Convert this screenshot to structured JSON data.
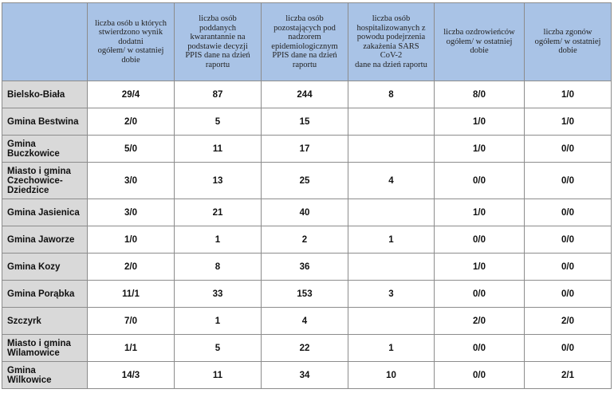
{
  "table": {
    "headers": [
      {
        "lines": [
          ""
        ]
      },
      {
        "lines": [
          "liczba osób u których",
          "stwierdzono wynik",
          "dodatni",
          "ogółem/ w ostatniej",
          "dobie"
        ]
      },
      {
        "lines": [
          "liczba osób",
          "poddanych",
          "kwarantannie na",
          "podstawie decyzji",
          "PPIS dane na dzień",
          "raportu"
        ]
      },
      {
        "lines": [
          "liczba osób",
          "pozostających pod",
          "nadzorem",
          "epidemiologicznym",
          "PPIS dane na dzień",
          "raportu"
        ]
      },
      {
        "lines": [
          "liczba osób",
          "hospitalizowanych z",
          "powodu podejrzenia",
          "zakażenia SARS",
          "CoV-2",
          "dane na dzień raportu"
        ]
      },
      {
        "lines": [
          "liczba ozdrowieńców",
          "ogółem/ w ostatniej",
          "dobie"
        ]
      },
      {
        "lines": [
          "liczba zgonów",
          "ogółem/ w ostatniej",
          "dobie"
        ]
      }
    ],
    "rows": [
      {
        "name": [
          "Bielsko-Biała"
        ],
        "cells": [
          "29/4",
          "87",
          "244",
          "8",
          "8/0",
          "1/0"
        ]
      },
      {
        "name": [
          "Gmina Bestwina"
        ],
        "cells": [
          "2/0",
          "5",
          "15",
          "",
          "1/0",
          "1/0"
        ]
      },
      {
        "name": [
          "Gmina",
          "Buczkowice"
        ],
        "cells": [
          "5/0",
          "11",
          "17",
          "",
          "1/0",
          "0/0"
        ]
      },
      {
        "name": [
          "Miasto i gmina",
          "Czechowice-",
          "Dziedzice"
        ],
        "cells": [
          "3/0",
          "13",
          "25",
          "4",
          "0/0",
          "0/0"
        ]
      },
      {
        "name": [
          "Gmina Jasienica"
        ],
        "cells": [
          "3/0",
          "21",
          "40",
          "",
          "1/0",
          "0/0"
        ]
      },
      {
        "name": [
          "Gmina Jaworze"
        ],
        "cells": [
          "1/0",
          "1",
          "2",
          "1",
          "0/0",
          "0/0"
        ]
      },
      {
        "name": [
          "Gmina Kozy"
        ],
        "cells": [
          "2/0",
          "8",
          "36",
          "",
          "1/0",
          "0/0"
        ]
      },
      {
        "name": [
          "Gmina Porąbka"
        ],
        "cells": [
          "11/1",
          "33",
          "153",
          "3",
          "0/0",
          "0/0"
        ]
      },
      {
        "name": [
          "Szczyrk"
        ],
        "cells": [
          "7/0",
          "1",
          "4",
          "",
          "2/0",
          "2/0"
        ]
      },
      {
        "name": [
          "Miasto i gmina",
          "Wilamowice"
        ],
        "cells": [
          "1/1",
          "5",
          "22",
          "1",
          "0/0",
          "0/0"
        ]
      },
      {
        "name": [
          "Gmina",
          "Wilkowice"
        ],
        "cells": [
          "14/3",
          "11",
          "34",
          "10",
          "0/0",
          "2/1"
        ]
      }
    ]
  }
}
